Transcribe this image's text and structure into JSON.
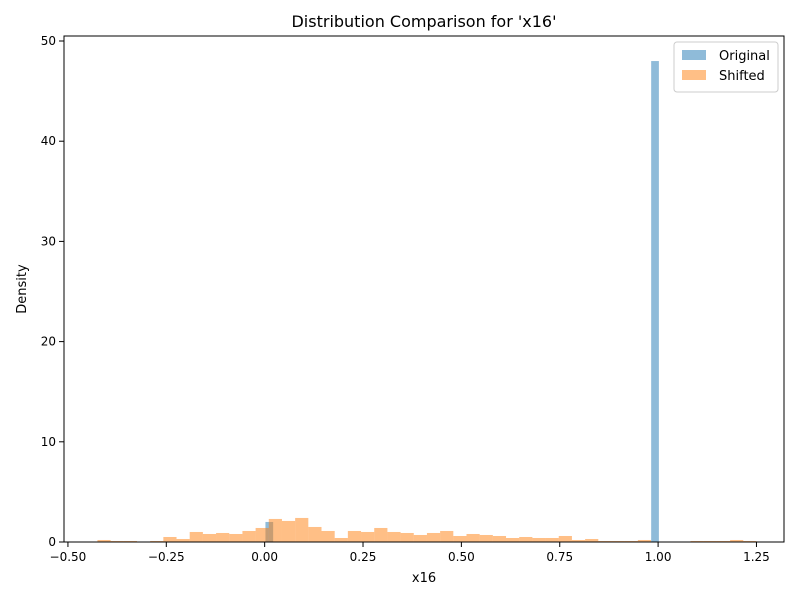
{
  "chart_data": {
    "type": "histogram",
    "title": "Distribution Comparison for 'x16'",
    "xlabel": "x16",
    "ylabel": "Density",
    "xlim": [
      -0.51,
      1.32
    ],
    "ylim": [
      0,
      50.5
    ],
    "xticks": [
      -0.5,
      -0.25,
      0.0,
      0.25,
      0.5,
      0.75,
      1.0,
      1.25
    ],
    "xtick_labels": [
      "−0.50",
      "−0.25",
      "0.00",
      "0.25",
      "0.50",
      "0.75",
      "1.00",
      "1.25"
    ],
    "yticks": [
      0,
      10,
      20,
      30,
      40,
      50
    ],
    "ytick_labels": [
      "0",
      "10",
      "20",
      "30",
      "40",
      "50"
    ],
    "legend_position": "top-right",
    "grid": false,
    "series": [
      {
        "name": "Original",
        "color": "#1f77b4",
        "opacity": 0.5,
        "bin_width": 0.0196,
        "bins": [
          {
            "x0": 0.002,
            "x1": 0.0216,
            "density": 2.0
          },
          {
            "x0": 0.9824,
            "x1": 1.002,
            "density": 48.0
          }
        ]
      },
      {
        "name": "Shifted",
        "color": "#ff7f0e",
        "opacity": 0.5,
        "bin_width": 0.0335,
        "start": -0.425,
        "densities": [
          0.2,
          0.1,
          0.1,
          0.0,
          0.1,
          0.5,
          0.3,
          1.0,
          0.8,
          0.9,
          0.8,
          1.1,
          1.4,
          2.3,
          2.1,
          2.4,
          1.5,
          1.1,
          0.4,
          1.1,
          1.0,
          1.4,
          1.0,
          0.9,
          0.7,
          0.9,
          1.1,
          0.6,
          0.8,
          0.7,
          0.6,
          0.4,
          0.5,
          0.4,
          0.4,
          0.6,
          0.2,
          0.3,
          0.1,
          0.1,
          0.1,
          0.2,
          0.0,
          0.0,
          0.0,
          0.1,
          0.1,
          0.1,
          0.2,
          0.1
        ]
      }
    ]
  }
}
